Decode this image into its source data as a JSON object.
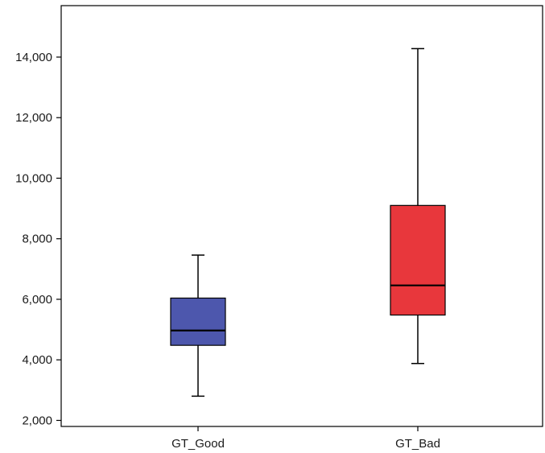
{
  "chart_data": {
    "type": "boxplot",
    "title": "",
    "xlabel": "",
    "ylabel": "",
    "ylim": [
      1800,
      15700
    ],
    "y_ticks": [
      2000,
      4000,
      6000,
      8000,
      10000,
      12000,
      14000
    ],
    "y_tick_labels": [
      "2,000",
      "4,000",
      "6,000",
      "8,000",
      "10,000",
      "12,000",
      "14,000"
    ],
    "grid": false,
    "legend": "none",
    "categories": [
      "GT_Good",
      "GT_Bad"
    ],
    "boxes": [
      {
        "category": "GT_Good",
        "whisker_low": 2800,
        "q1": 4480,
        "median": 4970,
        "q3": 6040,
        "whisker_high": 7460,
        "color": "#4d57ad"
      },
      {
        "category": "GT_Bad",
        "whisker_low": 3880,
        "q1": 5480,
        "median": 6460,
        "q3": 9100,
        "whisker_high": 14280,
        "color": "#e8373c"
      }
    ]
  }
}
